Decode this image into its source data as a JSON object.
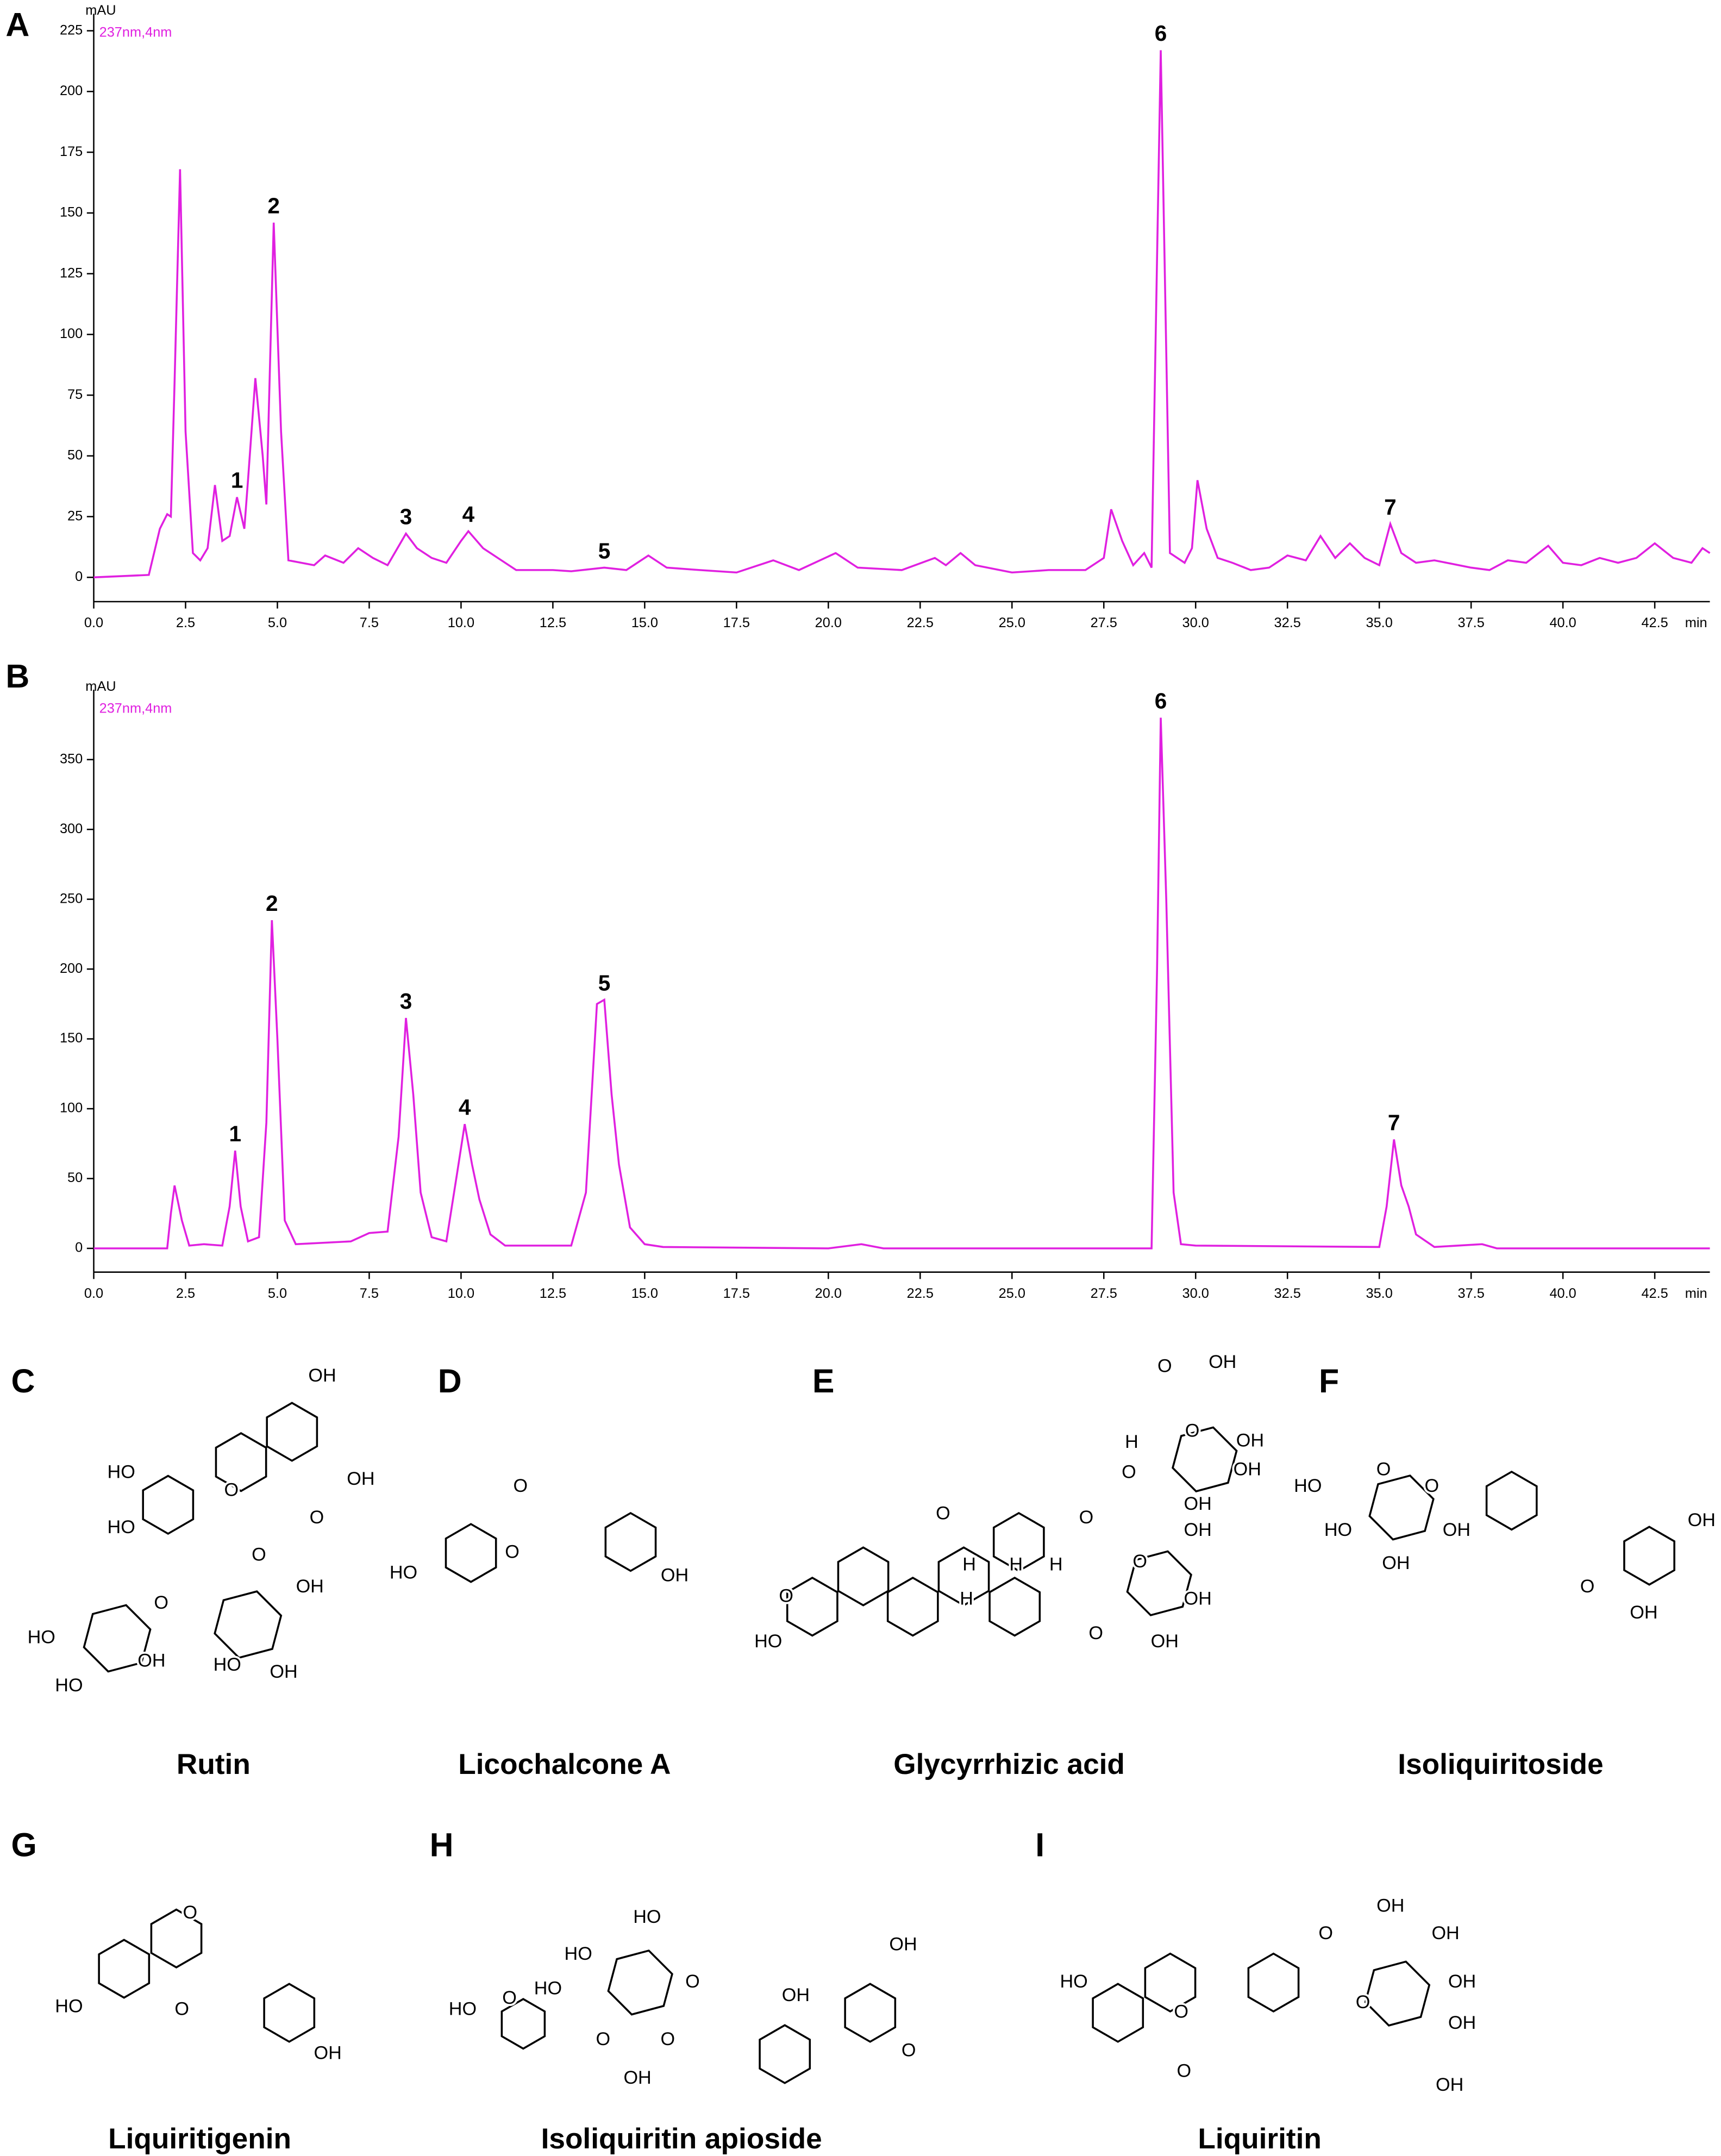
{
  "chart_data": [
    {
      "type": "line",
      "panel": "A",
      "ylabel": "mAU",
      "xlabel": "min",
      "x": [
        0,
        1.5,
        1.8,
        2.0,
        2.1,
        2.2,
        2.35,
        2.5,
        2.7,
        2.9,
        3.1,
        3.3,
        3.5,
        3.7,
        3.9,
        4.1,
        4.2,
        4.4,
        4.6,
        4.7,
        4.9,
        5.1,
        5.3,
        6.0,
        6.3,
        6.8,
        7.2,
        7.6,
        8.0,
        8.5,
        8.8,
        9.2,
        9.6,
        10.0,
        10.2,
        10.6,
        11.0,
        11.5,
        12.5,
        13.0,
        13.9,
        14.5,
        15.1,
        15.6,
        16.5,
        17.5,
        18.5,
        19.2,
        20.2,
        20.8,
        22.0,
        22.9,
        23.2,
        23.6,
        24.0,
        25.0,
        26.0,
        27.0,
        27.5,
        27.7,
        28.0,
        28.3,
        28.6,
        28.8,
        29.05,
        29.3,
        29.7,
        29.9,
        30.05,
        30.3,
        30.6,
        31.0,
        31.5,
        32.0,
        32.5,
        33.0,
        33.4,
        33.8,
        34.2,
        34.6,
        35.0,
        35.3,
        35.6,
        36.0,
        36.5,
        37.5,
        38.0,
        38.5,
        39.0,
        39.6,
        40.0,
        40.5,
        41.0,
        41.5,
        42.0,
        42.5,
        43.0,
        43.5,
        43.8,
        44.0
      ],
      "series": [
        {
          "name": "237nm,4nm",
          "color": "#e020e0",
          "values": [
            0,
            1,
            20,
            26,
            25,
            80,
            168,
            60,
            10,
            7,
            12,
            38,
            15,
            17,
            33,
            20,
            40,
            82,
            50,
            30,
            146,
            60,
            7,
            5,
            9,
            6,
            12,
            8,
            5,
            18,
            12,
            8,
            6,
            15,
            19,
            12,
            8,
            3,
            3,
            2.5,
            4,
            3,
            9,
            4,
            3,
            2,
            7,
            3,
            10,
            4,
            3,
            8,
            5,
            10,
            5,
            2,
            3,
            3,
            8,
            28,
            15,
            5,
            10,
            4,
            217,
            10,
            6,
            12,
            40,
            20,
            8,
            6,
            3,
            4,
            9,
            7,
            17,
            8,
            14,
            8,
            5,
            22,
            10,
            6,
            7,
            4,
            3,
            7,
            6,
            13,
            6,
            5,
            8,
            6,
            8,
            14,
            8,
            6,
            12,
            10
          ]
        }
      ],
      "peaks": [
        {
          "label": "1",
          "x": 3.9
        },
        {
          "label": "2",
          "x": 4.9
        },
        {
          "label": "3",
          "x": 8.5
        },
        {
          "label": "4",
          "x": 10.2
        },
        {
          "label": "5",
          "x": 13.9
        },
        {
          "label": "6",
          "x": 29.05
        },
        {
          "label": "7",
          "x": 35.3
        }
      ],
      "xlim": [
        0,
        44
      ],
      "ylim": [
        -10,
        232
      ],
      "xticks": [
        {
          "value": 0,
          "label": "0.0"
        },
        2.5,
        {
          "value": 5,
          "label": "5.0"
        },
        7.5,
        {
          "value": 10,
          "label": "10.0"
        },
        12.5,
        {
          "value": 15,
          "label": "15.0"
        },
        17.5,
        {
          "value": 20,
          "label": "20.0"
        },
        22.5,
        {
          "value": 25,
          "label": "25.0"
        },
        27.5,
        {
          "value": 30,
          "label": "30.0"
        },
        32.5,
        {
          "value": 35,
          "label": "35.0"
        },
        37.5,
        {
          "value": 40,
          "label": "40.0"
        },
        42.5
      ],
      "yticks": [
        0,
        25,
        50,
        75,
        100,
        125,
        150,
        175,
        200,
        225
      ]
    },
    {
      "type": "line",
      "panel": "B",
      "ylabel": "mAU",
      "xlabel": "min",
      "x": [
        0,
        2.0,
        2.1,
        2.2,
        2.4,
        2.6,
        3.0,
        3.5,
        3.7,
        3.85,
        4.0,
        4.2,
        4.5,
        4.7,
        4.85,
        5.0,
        5.2,
        5.5,
        7.0,
        7.5,
        8.0,
        8.3,
        8.5,
        8.7,
        8.9,
        9.2,
        9.6,
        9.9,
        10.1,
        10.3,
        10.5,
        10.8,
        11.2,
        13.0,
        13.4,
        13.7,
        13.9,
        14.1,
        14.3,
        14.6,
        15.0,
        15.5,
        20.0,
        20.9,
        21.5,
        28.8,
        28.95,
        29.05,
        29.2,
        29.4,
        29.6,
        30.0,
        35.0,
        35.2,
        35.4,
        35.6,
        35.8,
        36.0,
        36.5,
        37.8,
        38.2,
        44.0
      ],
      "series": [
        {
          "name": "237nm,4nm",
          "color": "#e020e0",
          "values": [
            0,
            0,
            25,
            45,
            20,
            2,
            3,
            2,
            30,
            70,
            30,
            5,
            8,
            90,
            235,
            150,
            20,
            3,
            5,
            11,
            12,
            80,
            165,
            110,
            40,
            8,
            5,
            55,
            89,
            60,
            35,
            10,
            2,
            2,
            40,
            175,
            178,
            110,
            60,
            15,
            3,
            1,
            0,
            3,
            0,
            0,
            200,
            380,
            250,
            40,
            3,
            2,
            1,
            30,
            78,
            45,
            30,
            10,
            1,
            3,
            0,
            0
          ]
        }
      ],
      "peaks": [
        {
          "label": "1",
          "x": 3.85
        },
        {
          "label": "2",
          "x": 4.85
        },
        {
          "label": "3",
          "x": 8.5
        },
        {
          "label": "4",
          "x": 10.1
        },
        {
          "label": "5",
          "x": 13.9
        },
        {
          "label": "6",
          "x": 29.05
        },
        {
          "label": "7",
          "x": 35.4
        }
      ],
      "xlim": [
        0,
        44
      ],
      "ylim": [
        -17,
        400
      ],
      "xticks": [
        {
          "value": 0,
          "label": "0.0"
        },
        2.5,
        {
          "value": 5,
          "label": "5.0"
        },
        7.5,
        {
          "value": 10,
          "label": "10.0"
        },
        12.5,
        {
          "value": 15,
          "label": "15.0"
        },
        17.5,
        {
          "value": 20,
          "label": "20.0"
        },
        22.5,
        {
          "value": 25,
          "label": "25.0"
        },
        27.5,
        {
          "value": 30,
          "label": "30.0"
        },
        32.5,
        {
          "value": 35,
          "label": "35.0"
        },
        37.5,
        {
          "value": 40,
          "label": "40.0"
        },
        42.5
      ],
      "yticks": [
        0,
        50,
        100,
        150,
        200,
        250,
        300,
        350
      ]
    }
  ],
  "structures": [
    {
      "panel": "C",
      "name": "Rutin",
      "labels": [
        "OH",
        "HO",
        "HO",
        "OH",
        "O",
        "O",
        "O",
        "O",
        "HO",
        "OH",
        "HO",
        "OH",
        "HO",
        "OH"
      ]
    },
    {
      "panel": "D",
      "name": "Licochalcone A",
      "labels": [
        "O",
        "HO",
        "O",
        "OH"
      ]
    },
    {
      "panel": "E",
      "name": "Glycyrrhizic acid",
      "labels": [
        "O",
        "OH",
        "O",
        "OH",
        "H",
        "O",
        "OH",
        "OH",
        "O",
        "H",
        "H",
        "H",
        "H",
        "O",
        "O",
        "OH",
        "OH",
        "O",
        "OH",
        "O",
        "HO"
      ]
    },
    {
      "panel": "F",
      "name": "Isoliquiritoside",
      "labels": [
        "HO",
        "O",
        "O",
        "HO",
        "OH",
        "OH",
        "OH",
        "O",
        "OH"
      ]
    },
    {
      "panel": "G",
      "name": "Liquiritigenin",
      "labels": [
        "O",
        "HO",
        "O",
        "OH"
      ]
    },
    {
      "panel": "H",
      "name": "Isoliquiritin apioside",
      "labels": [
        "HO",
        "HO",
        "HO",
        "O",
        "O",
        "HO",
        "O",
        "O",
        "OH",
        "OH",
        "OH",
        "O"
      ]
    },
    {
      "panel": "I",
      "name": "Liquiritin",
      "labels": [
        "OH",
        "O",
        "OH",
        "HO",
        "O",
        "O",
        "OH",
        "OH",
        "OH",
        "O"
      ]
    }
  ]
}
